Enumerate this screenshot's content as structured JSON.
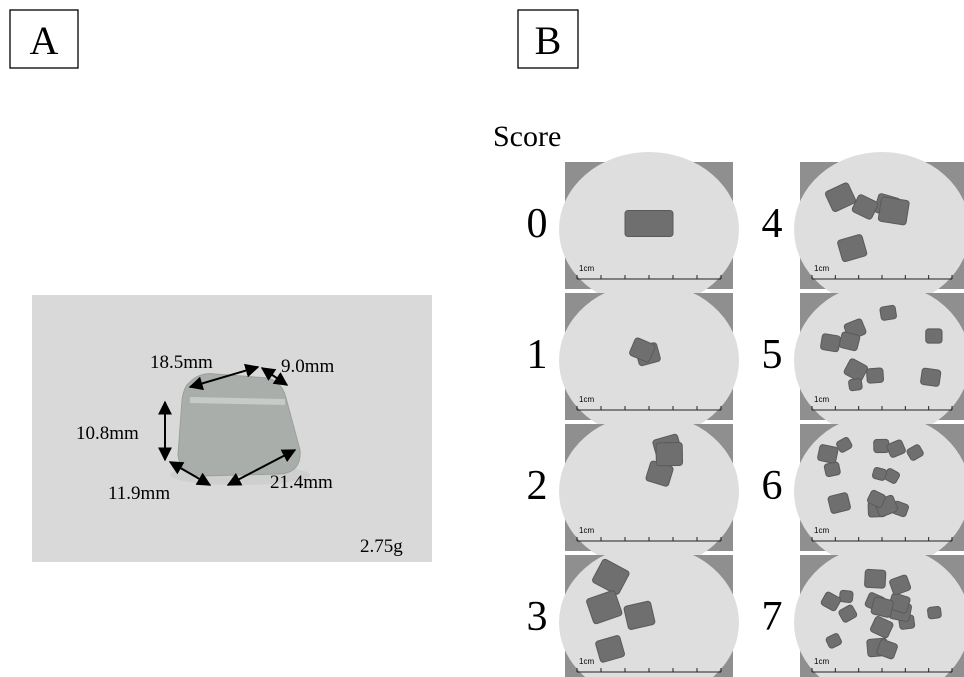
{
  "panel_a": {
    "label": "A",
    "measurements": [
      "18.5mm",
      "9.0mm",
      "10.8mm",
      "11.9mm",
      "21.4mm"
    ],
    "weight": "2.75g"
  },
  "panel_b": {
    "label": "B",
    "heading": "Score",
    "scores": [
      "0",
      "1",
      "2",
      "3",
      "4",
      "5",
      "6",
      "7"
    ],
    "scale_label": "1cm"
  }
}
